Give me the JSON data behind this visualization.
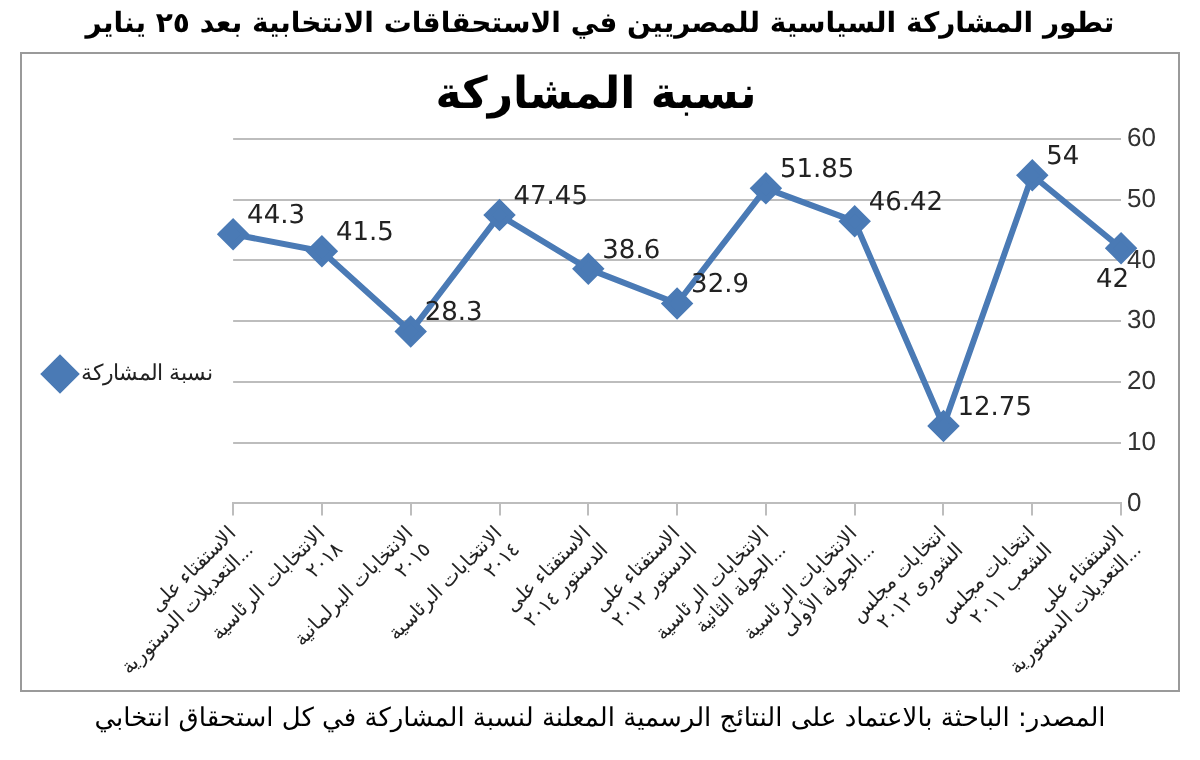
{
  "chart_data": {
    "type": "line",
    "title": "نسبة المشاركة",
    "categories": [
      "الاستفتاء على التعديلات الدستورية...",
      "الانتخابات الرئاسية ٢٠١٨",
      "الانتخابات البرلمانية ٢٠١٥",
      "الانتخابات الرئاسية ٢٠١٤",
      "الاستفتاء على الدستور ٢٠١٤",
      "الاستفتاء على الدستور ٢٠١٢",
      "الانتخابات الرئاسية الجولة الثانية...",
      "الانتخابات الرئاسية الجولة الأولى...",
      "انتخابات مجلس الشورى ٢٠١٢",
      "انتخابات مجلس الشعب ٢٠١١",
      "الاستفتاء على التعديلات الدستورية..."
    ],
    "series": [
      {
        "name": "نسبة المشاركة",
        "color": "#4a7ab5",
        "values": [
          44.3,
          41.5,
          28.3,
          47.45,
          38.6,
          32.9,
          51.85,
          46.42,
          12.75,
          54,
          42
        ]
      }
    ],
    "ylim": [
      0,
      60
    ],
    "yticks": [
      0,
      10,
      20,
      30,
      40,
      50,
      60
    ],
    "grid": "y",
    "legend": "left",
    "marker": "diamond",
    "line_style": "solid",
    "data_labels": true,
    "annotations": [
      "تطور المشاركة السياسية للمصريين في الاستحقاقات الانتخابية بعد ٢٥ يناير",
      "المصدر: الباحثة بالاعتماد على النتائج الرسمية المعلنة لنسبة المشاركة في كل استحقاق انتخابي"
    ]
  }
}
